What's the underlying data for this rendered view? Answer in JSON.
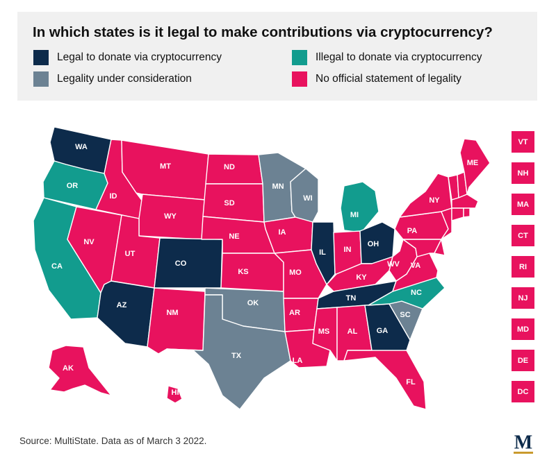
{
  "title": "In which states is it legal to make contributions via cryptocurrency?",
  "colors": {
    "legal": "#0d2b4b",
    "illegal": "#129c8e",
    "consideration": "#6c8293",
    "none": "#e8125e"
  },
  "legend": {
    "legal": "Legal to donate via cryptocurrency",
    "illegal": "Illegal to donate via cryptocurrency",
    "consideration": "Legality under consideration",
    "none": "No official statement of legality"
  },
  "states": {
    "WA": "legal",
    "OR": "illegal",
    "CA": "illegal",
    "AK": "none",
    "HI": "none",
    "ID": "none",
    "MT": "none",
    "WY": "none",
    "NV": "none",
    "UT": "none",
    "CO": "legal",
    "AZ": "legal",
    "NM": "none",
    "ND": "none",
    "SD": "none",
    "NE": "none",
    "KS": "none",
    "OK": "consideration",
    "TX": "consideration",
    "MN": "consideration",
    "IA": "none",
    "MO": "none",
    "AR": "none",
    "LA": "none",
    "WI": "consideration",
    "IL": "legal",
    "MI": "illegal",
    "IN": "none",
    "OH": "legal",
    "KY": "none",
    "TN": "legal",
    "MS": "none",
    "AL": "none",
    "GA": "legal",
    "FL": "none",
    "SC": "consideration",
    "NC": "illegal",
    "VA": "none",
    "WV": "none",
    "PA": "none",
    "NY": "none",
    "ME": "none",
    "VT": "none",
    "NH": "none",
    "MA": "none",
    "RI": "none",
    "CT": "none",
    "NJ": "none",
    "DE": "none",
    "MD": "none",
    "DC": "none"
  },
  "small_states": [
    "VT",
    "NH",
    "MA",
    "CT",
    "RI",
    "NJ",
    "MD",
    "DE",
    "DC"
  ],
  "source": "Source: MultiState. Data as of March 3 2022.",
  "logo_letter": "M"
}
